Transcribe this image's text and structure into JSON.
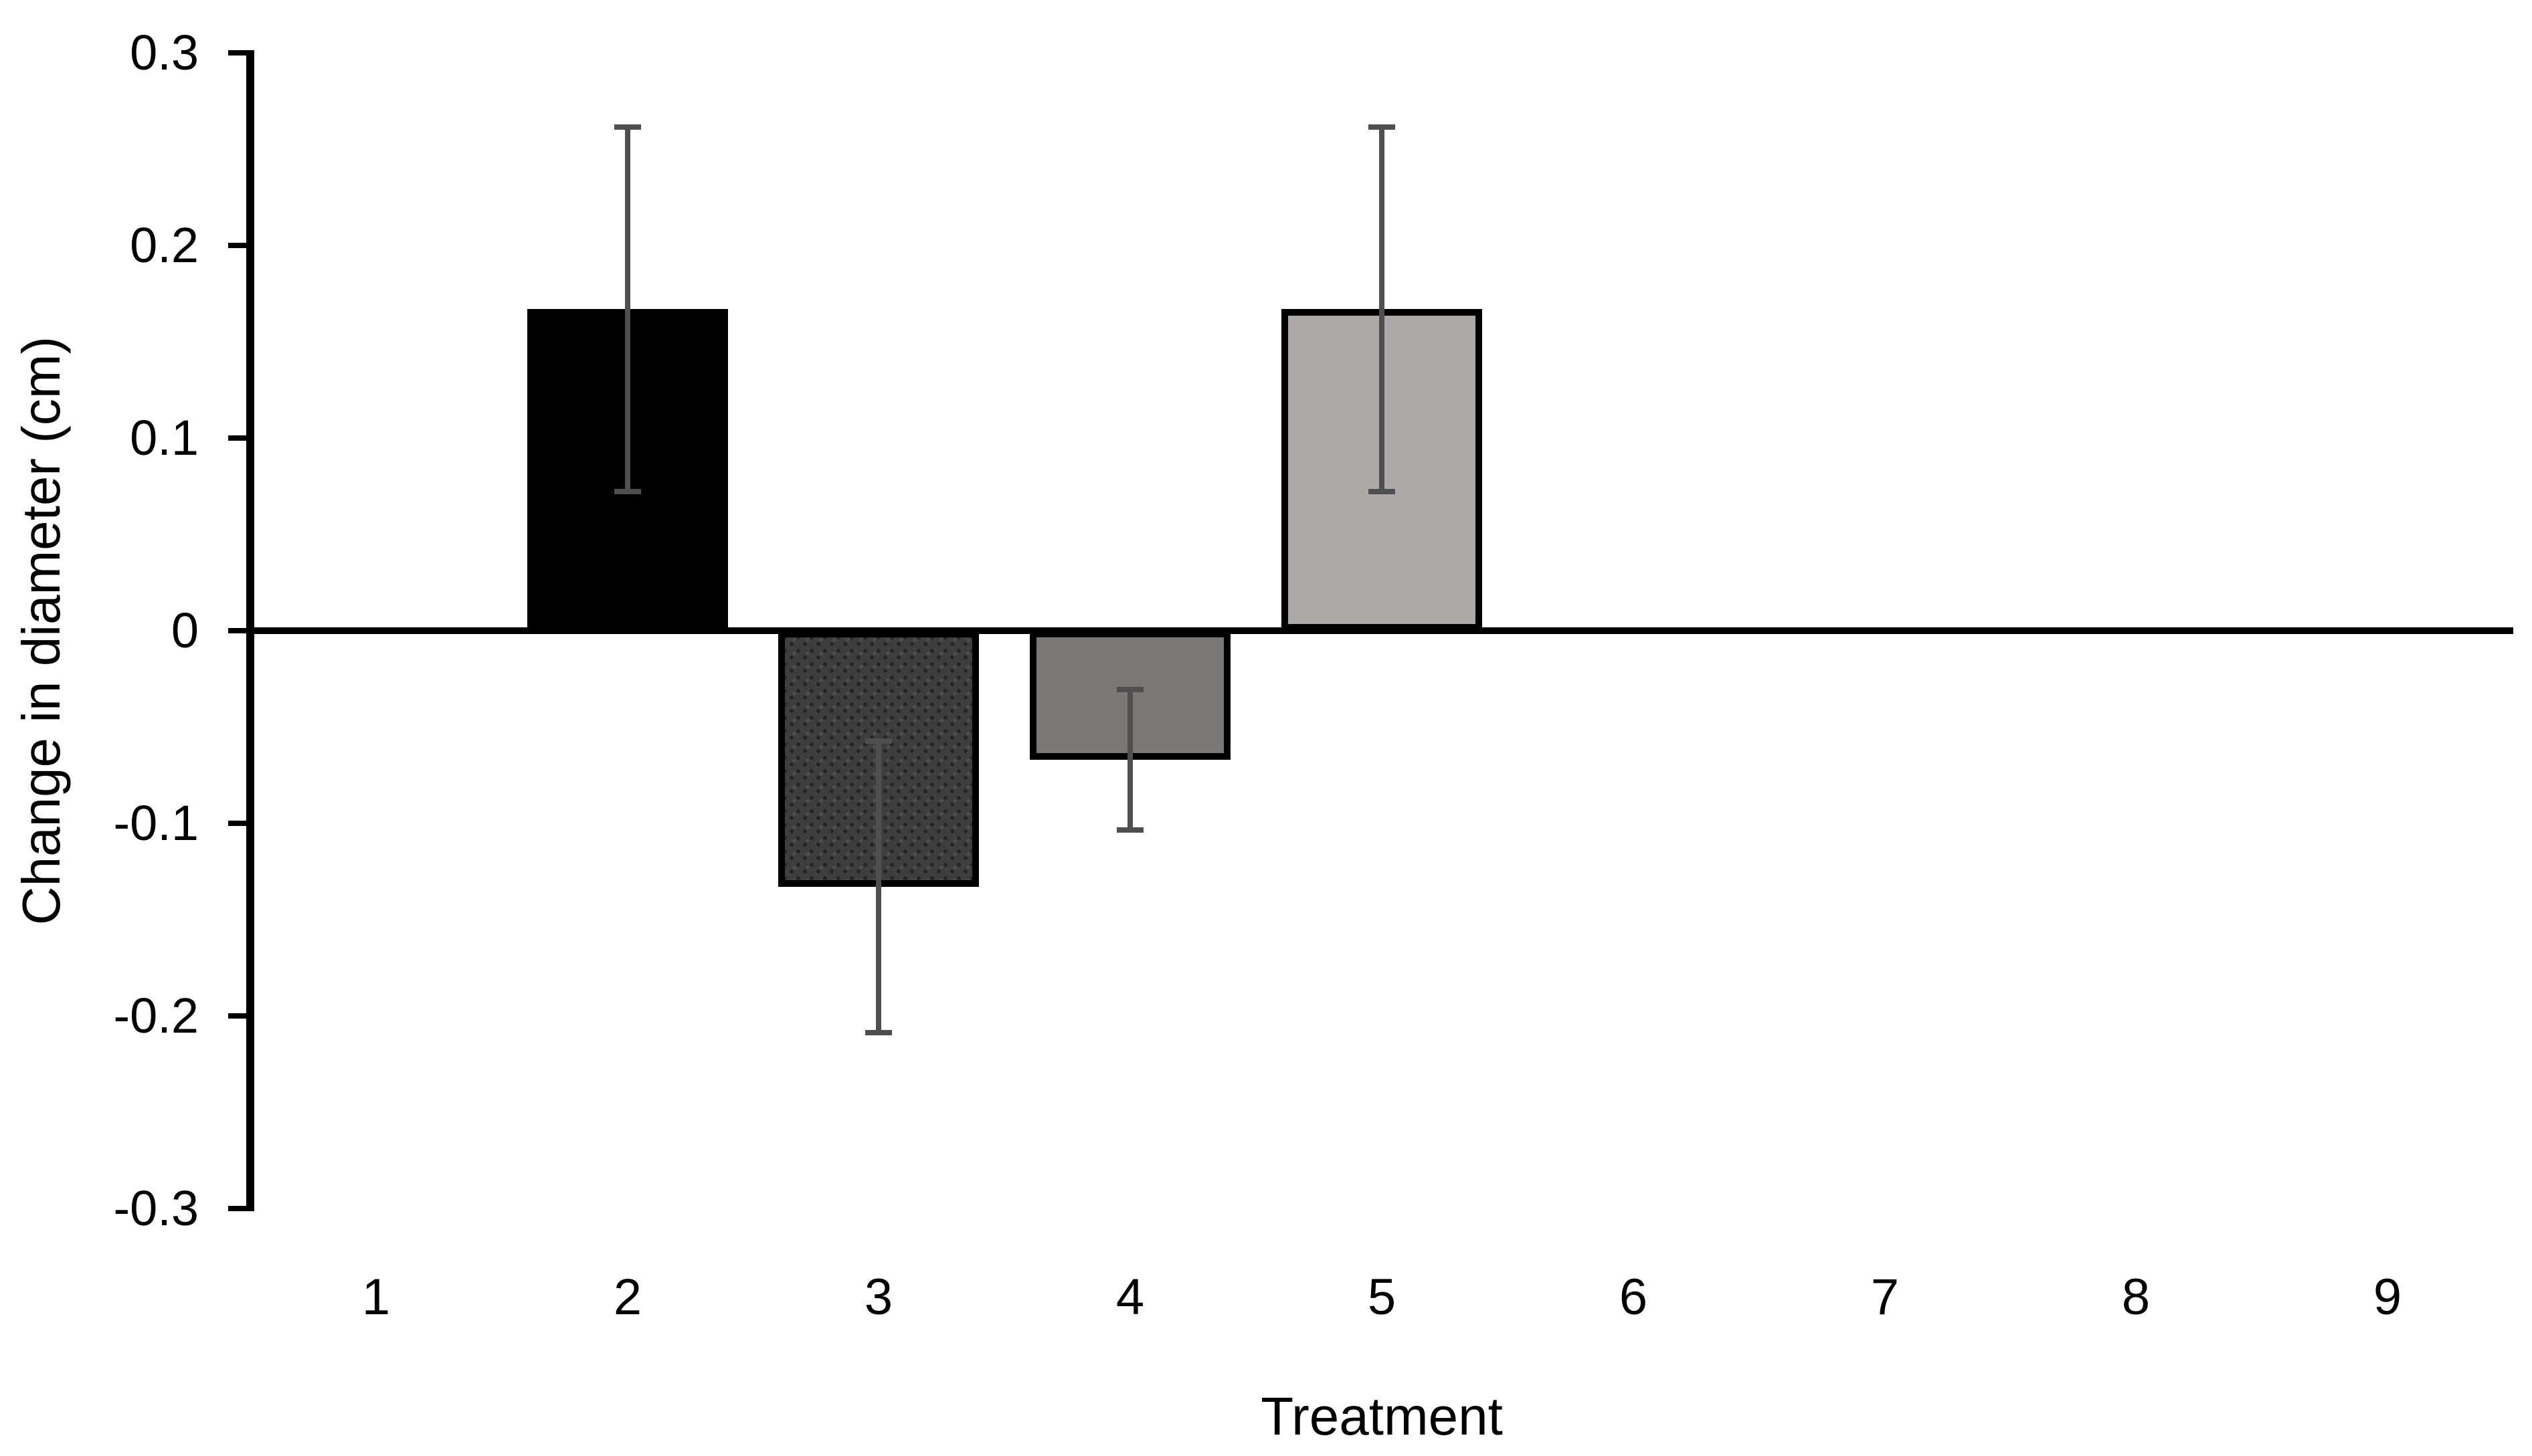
{
  "page": {
    "background": "#ffffff"
  },
  "chart_data": {
    "type": "bar",
    "title": "",
    "xlabel": "Treatment",
    "ylabel": "Change in diameter (cm)",
    "categories": [
      "1",
      "2",
      "3",
      "4",
      "5",
      "6",
      "7",
      "8",
      "9"
    ],
    "series": [
      {
        "name": "Change in diameter (cm)",
        "values": [
          null,
          0.167,
          -0.133,
          -0.067,
          0.167,
          null,
          null,
          null,
          null
        ],
        "errors": [
          null,
          0.096,
          0.077,
          0.038,
          0.096,
          null,
          null,
          null,
          null
        ]
      }
    ],
    "bar_styles": [
      null,
      {
        "fill": "#000000",
        "pattern": "solid"
      },
      {
        "fill": "#3e3e3e",
        "pattern": "dots"
      },
      {
        "fill": "#7a7775",
        "pattern": "solid"
      },
      {
        "fill": "#ada9a9",
        "pattern": "solid"
      },
      null,
      null,
      null,
      null
    ],
    "ylim": [
      -0.3,
      0.3
    ],
    "ytick_labels": [
      "0.3",
      "0.2",
      "0.1",
      "0",
      "-0.1",
      "-0.2",
      "-0.3"
    ],
    "ytick_values": [
      0.3,
      0.2,
      0.1,
      0,
      -0.1,
      -0.2,
      -0.3
    ],
    "grid": false,
    "legend": "none",
    "error_bar_color": "#4f4f4f",
    "axis_color": "#000000",
    "background_color": "#ffffff"
  }
}
